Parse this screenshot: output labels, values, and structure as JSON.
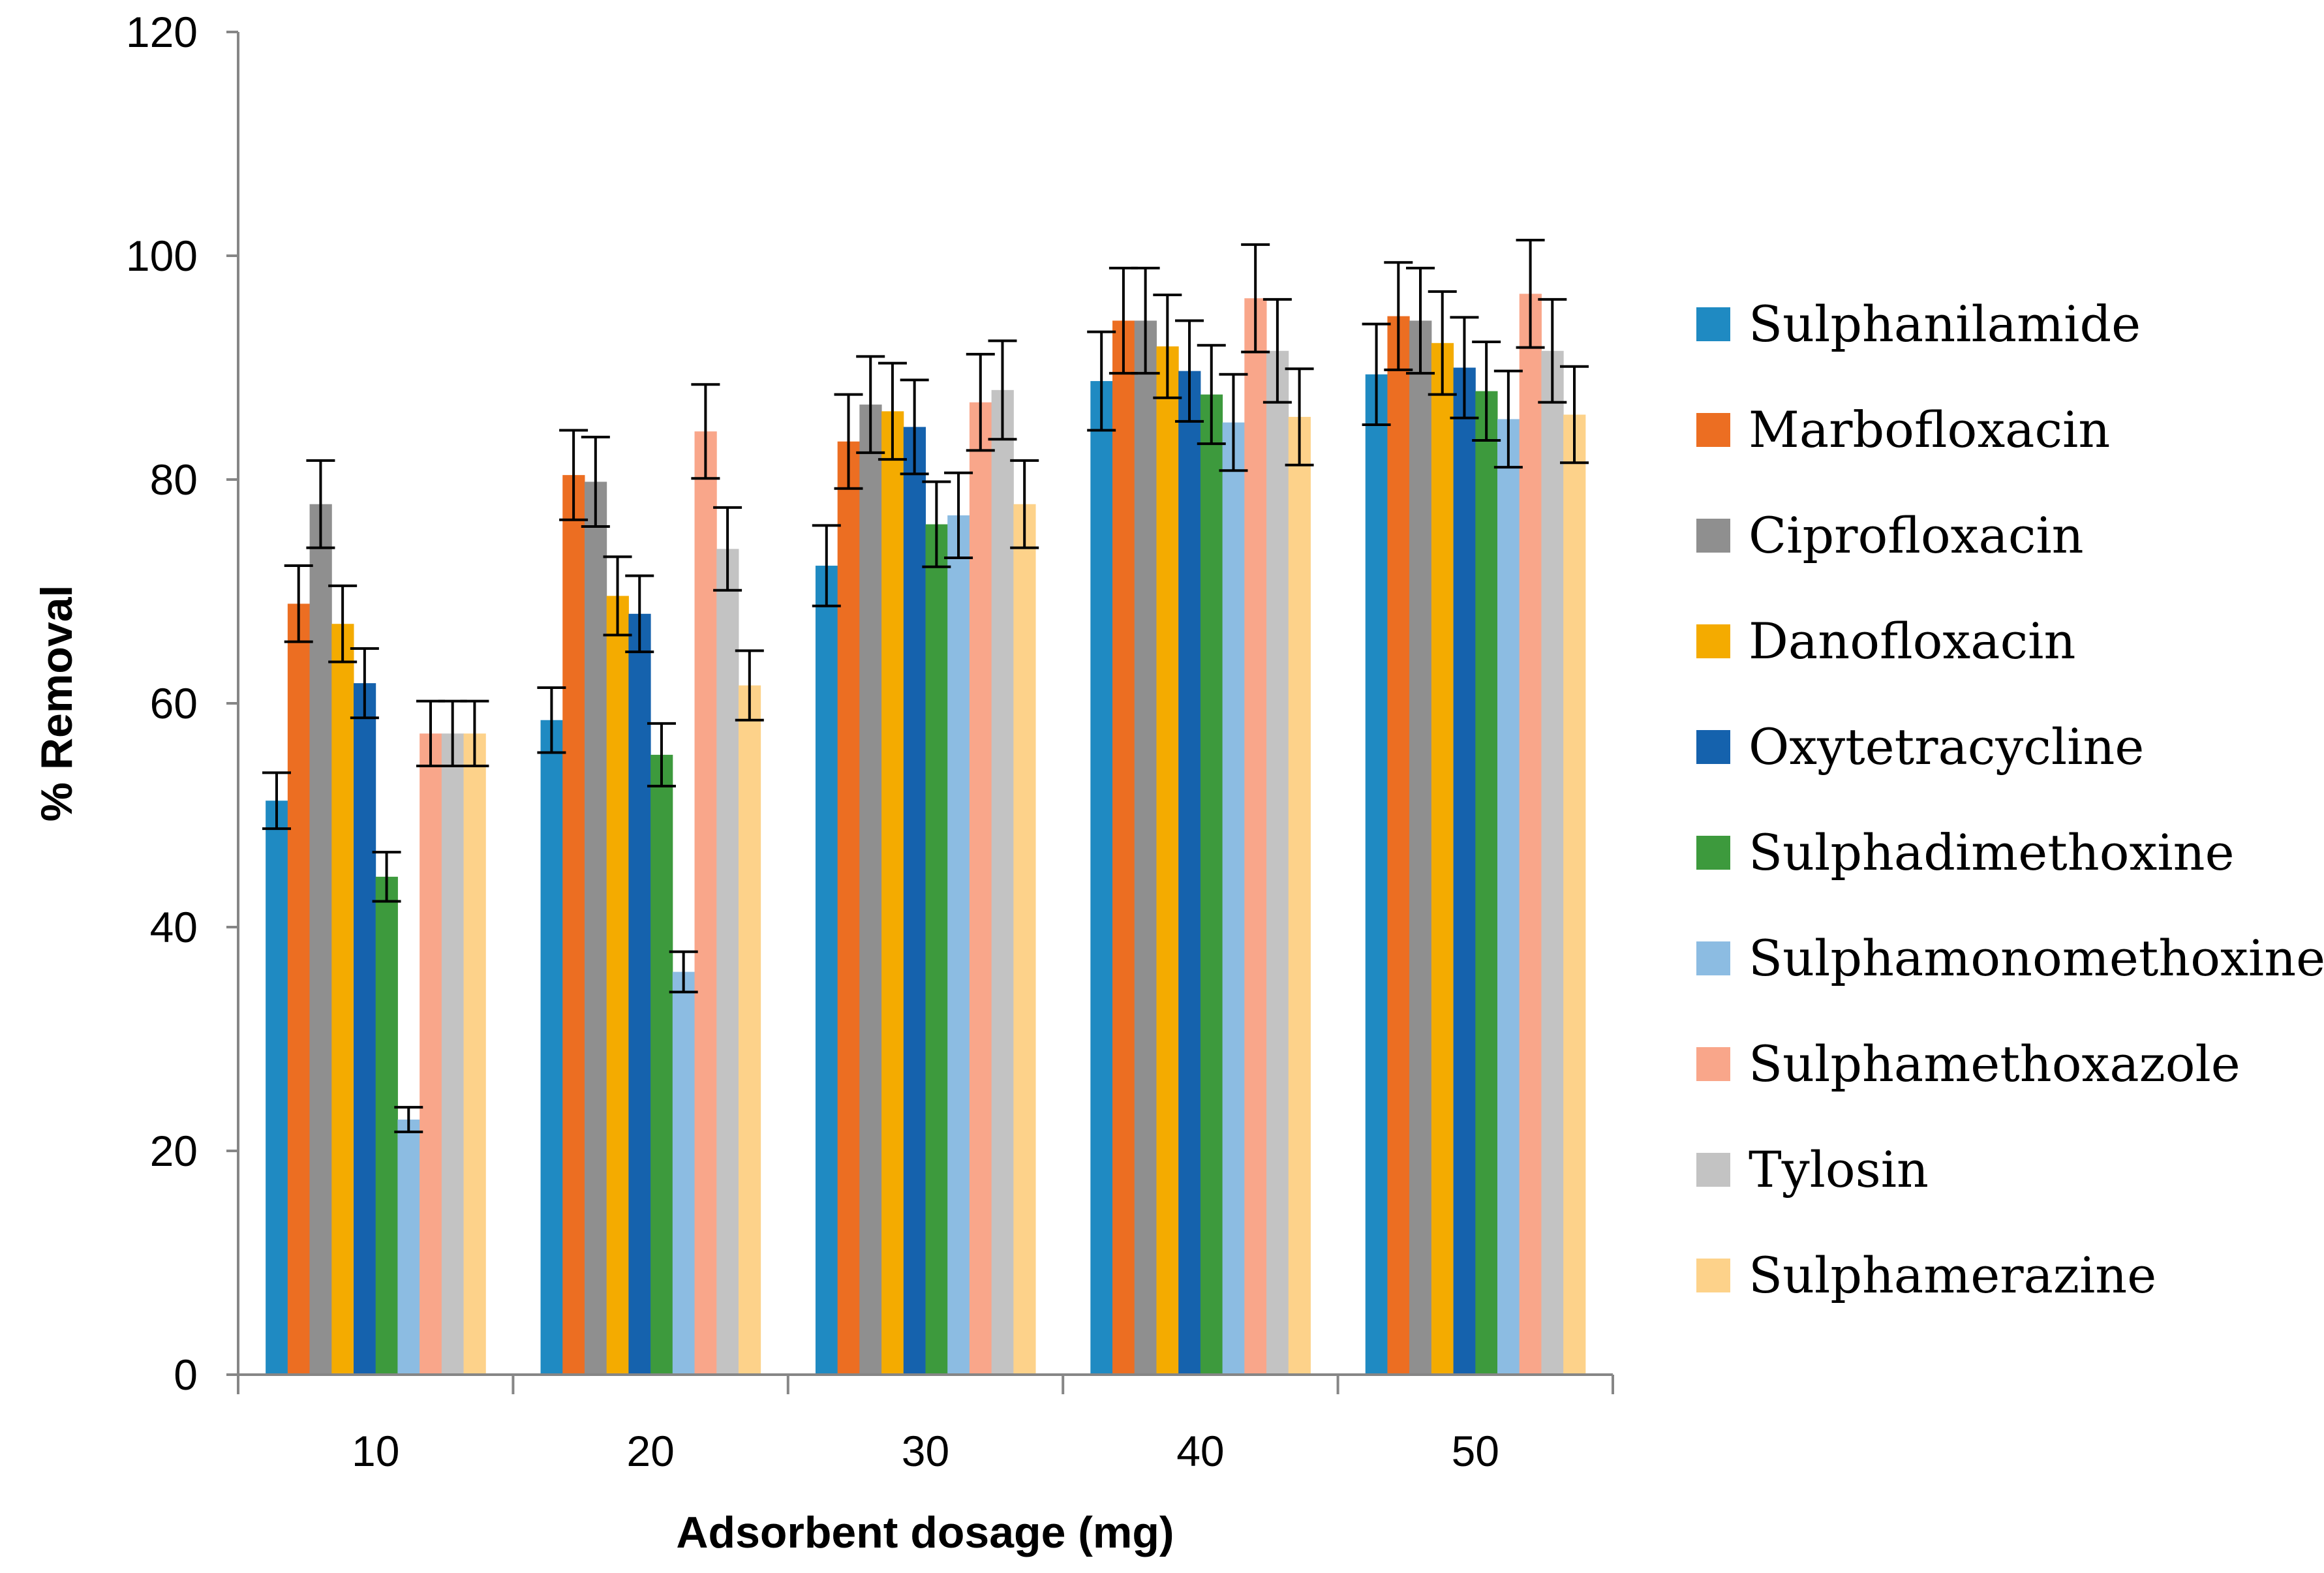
{
  "chart_data": {
    "type": "bar",
    "title": "",
    "xlabel": "Adsorbent dosage (mg)",
    "ylabel": "% Removal",
    "ylim": [
      0,
      120
    ],
    "yticks": [
      "0",
      "20",
      "40",
      "60",
      "80",
      "100",
      "120"
    ],
    "categories": [
      "10",
      "20",
      "30",
      "40",
      "50"
    ],
    "grid": false,
    "legend_position": "right",
    "series": [
      {
        "name": "Sulphanilamide",
        "color": "#1f8ac2",
        "values": [
          51.3,
          58.5,
          72.3,
          88.8,
          89.4
        ],
        "errors": [
          2.5,
          2.9,
          3.6,
          4.4,
          4.5
        ]
      },
      {
        "name": "Marbofloxacin",
        "color": "#ec6e22",
        "values": [
          68.9,
          80.4,
          83.4,
          94.2,
          94.6
        ],
        "errors": [
          3.4,
          4.0,
          4.2,
          4.7,
          4.8
        ]
      },
      {
        "name": "Ciprofloxacin",
        "color": "#8f8f8f",
        "values": [
          77.8,
          79.8,
          86.7,
          94.2,
          94.2
        ],
        "errors": [
          3.9,
          4.0,
          4.3,
          4.7,
          4.7
        ]
      },
      {
        "name": "Danofloxacin",
        "color": "#f4ab00",
        "values": [
          67.1,
          69.6,
          86.1,
          91.9,
          92.2
        ],
        "errors": [
          3.4,
          3.5,
          4.3,
          4.6,
          4.6
        ]
      },
      {
        "name": "Oxytetracycline",
        "color": "#1562ad",
        "values": [
          61.8,
          68.0,
          84.7,
          89.7,
          90.0
        ],
        "errors": [
          3.1,
          3.4,
          4.2,
          4.5,
          4.5
        ]
      },
      {
        "name": "Sulphadimethoxine",
        "color": "#3d9a3d",
        "values": [
          44.5,
          55.4,
          76.0,
          87.6,
          87.9
        ],
        "errors": [
          2.2,
          2.8,
          3.8,
          4.4,
          4.4
        ]
      },
      {
        "name": "Sulphamonomethoxine",
        "color": "#8cbce2",
        "values": [
          22.8,
          36.0,
          76.8,
          85.1,
          85.4
        ],
        "errors": [
          1.1,
          1.8,
          3.8,
          4.3,
          4.3
        ]
      },
      {
        "name": "Sulphamethoxazole",
        "color": "#f9a68a",
        "values": [
          57.3,
          84.3,
          86.9,
          96.2,
          96.6
        ],
        "errors": [
          2.9,
          4.2,
          4.3,
          4.8,
          4.8
        ]
      },
      {
        "name": "Tylosin",
        "color": "#c3c3c3",
        "values": [
          57.3,
          73.8,
          88.0,
          91.5,
          91.5
        ],
        "errors": [
          2.9,
          3.7,
          4.4,
          4.6,
          4.6
        ]
      },
      {
        "name": "Sulphamerazine",
        "color": "#fdd28a",
        "values": [
          57.3,
          61.6,
          77.8,
          85.6,
          85.8
        ],
        "errors": [
          2.9,
          3.1,
          3.9,
          4.3,
          4.3
        ]
      }
    ]
  }
}
